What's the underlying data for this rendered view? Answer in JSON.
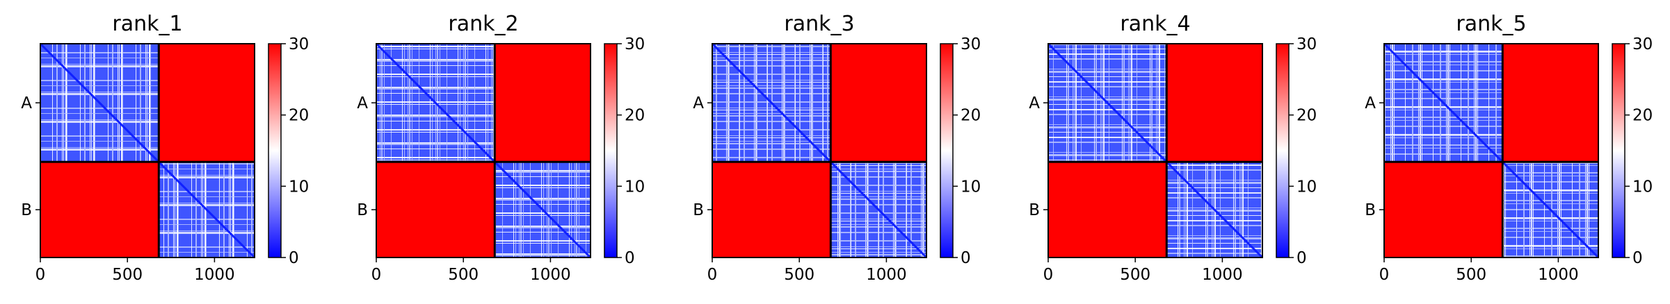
{
  "colors": {
    "low": "#0000ff",
    "mid": "#ffffff",
    "high": "#ff0000",
    "divider": "#000000"
  },
  "chart_data": [
    {
      "type": "heatmap",
      "title": "rank_1",
      "x_range": [
        0,
        1230
      ],
      "chain_break": 680,
      "x_ticks": [
        {
          "value": 0,
          "label": "0"
        },
        {
          "value": 500,
          "label": "500"
        },
        {
          "value": 1000,
          "label": "1000"
        }
      ],
      "y_categories": [
        {
          "label": "A",
          "center": 340
        },
        {
          "label": "B",
          "center": 955
        }
      ],
      "colorbar": {
        "range": [
          0,
          30
        ],
        "ticks": [
          {
            "value": 0,
            "label": "0"
          },
          {
            "value": 10,
            "label": "10"
          },
          {
            "value": 20,
            "label": "20"
          },
          {
            "value": 30,
            "label": "30"
          }
        ]
      },
      "grid": false
    },
    {
      "type": "heatmap",
      "title": "rank_2",
      "x_range": [
        0,
        1230
      ],
      "chain_break": 680,
      "x_ticks": [
        {
          "value": 0,
          "label": "0"
        },
        {
          "value": 500,
          "label": "500"
        },
        {
          "value": 1000,
          "label": "1000"
        }
      ],
      "y_categories": [
        {
          "label": "A",
          "center": 340
        },
        {
          "label": "B",
          "center": 955
        }
      ],
      "colorbar": {
        "range": [
          0,
          30
        ],
        "ticks": [
          {
            "value": 0,
            "label": "0"
          },
          {
            "value": 10,
            "label": "10"
          },
          {
            "value": 20,
            "label": "20"
          },
          {
            "value": 30,
            "label": "30"
          }
        ]
      },
      "grid": false
    },
    {
      "type": "heatmap",
      "title": "rank_3",
      "x_range": [
        0,
        1230
      ],
      "chain_break": 680,
      "x_ticks": [
        {
          "value": 0,
          "label": "0"
        },
        {
          "value": 500,
          "label": "500"
        },
        {
          "value": 1000,
          "label": "1000"
        }
      ],
      "y_categories": [
        {
          "label": "A",
          "center": 340
        },
        {
          "label": "B",
          "center": 955
        }
      ],
      "colorbar": {
        "range": [
          0,
          30
        ],
        "ticks": [
          {
            "value": 0,
            "label": "0"
          },
          {
            "value": 10,
            "label": "10"
          },
          {
            "value": 20,
            "label": "20"
          },
          {
            "value": 30,
            "label": "30"
          }
        ]
      },
      "grid": false
    },
    {
      "type": "heatmap",
      "title": "rank_4",
      "x_range": [
        0,
        1230
      ],
      "chain_break": 680,
      "x_ticks": [
        {
          "value": 0,
          "label": "0"
        },
        {
          "value": 500,
          "label": "500"
        },
        {
          "value": 1000,
          "label": "1000"
        }
      ],
      "y_categories": [
        {
          "label": "A",
          "center": 340
        },
        {
          "label": "B",
          "center": 955
        }
      ],
      "colorbar": {
        "range": [
          0,
          30
        ],
        "ticks": [
          {
            "value": 0,
            "label": "0"
          },
          {
            "value": 10,
            "label": "10"
          },
          {
            "value": 20,
            "label": "20"
          },
          {
            "value": 30,
            "label": "30"
          }
        ]
      },
      "grid": false
    },
    {
      "type": "heatmap",
      "title": "rank_5",
      "x_range": [
        0,
        1230
      ],
      "chain_break": 680,
      "x_ticks": [
        {
          "value": 0,
          "label": "0"
        },
        {
          "value": 500,
          "label": "500"
        },
        {
          "value": 1000,
          "label": "1000"
        }
      ],
      "y_categories": [
        {
          "label": "A",
          "center": 340
        },
        {
          "label": "B",
          "center": 955
        }
      ],
      "colorbar": {
        "range": [
          0,
          30
        ],
        "ticks": [
          {
            "value": 0,
            "label": "0"
          },
          {
            "value": 10,
            "label": "10"
          },
          {
            "value": 20,
            "label": "20"
          },
          {
            "value": 30,
            "label": "30"
          }
        ]
      },
      "grid": false
    }
  ]
}
